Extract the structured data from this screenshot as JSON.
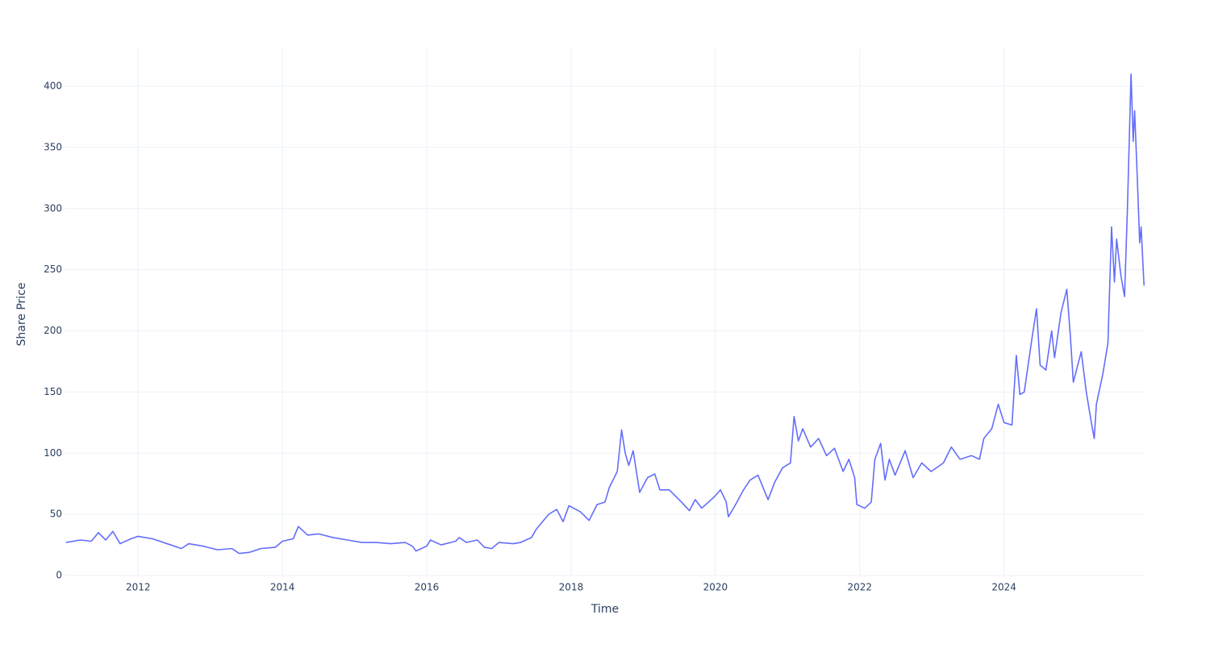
{
  "chart_data": {
    "type": "line",
    "x_label": "Time",
    "y_label": "Share Price",
    "x": [
      2011.0,
      2011.2,
      2011.35,
      2011.45,
      2011.55,
      2011.65,
      2011.75,
      2011.9,
      2012.0,
      2012.2,
      2012.45,
      2012.6,
      2012.7,
      2012.9,
      2013.1,
      2013.3,
      2013.4,
      2013.55,
      2013.7,
      2013.9,
      2014.0,
      2014.15,
      2014.22,
      2014.35,
      2014.5,
      2014.7,
      2014.9,
      2015.1,
      2015.3,
      2015.5,
      2015.7,
      2015.8,
      2015.85,
      2016.0,
      2016.05,
      2016.2,
      2016.4,
      2016.45,
      2016.55,
      2016.7,
      2016.8,
      2016.9,
      2017.0,
      2017.2,
      2017.3,
      2017.45,
      2017.52,
      2017.69,
      2017.8,
      2017.89,
      2017.97,
      2018.13,
      2018.25,
      2018.36,
      2018.47,
      2018.53,
      2018.64,
      2018.7,
      2018.75,
      2018.8,
      2018.86,
      2018.95,
      2019.06,
      2019.16,
      2019.23,
      2019.36,
      2019.53,
      2019.64,
      2019.72,
      2019.81,
      2019.98,
      2020.07,
      2020.15,
      2020.18,
      2020.28,
      2020.39,
      2020.48,
      2020.59,
      2020.73,
      2020.82,
      2020.93,
      2021.04,
      2021.09,
      2021.15,
      2021.21,
      2021.32,
      2021.43,
      2021.54,
      2021.65,
      2021.77,
      2021.85,
      2021.93,
      2021.96,
      2022.07,
      2022.16,
      2022.21,
      2022.29,
      2022.35,
      2022.41,
      2022.49,
      2022.63,
      2022.74,
      2022.86,
      2022.99,
      2023.16,
      2023.27,
      2023.39,
      2023.55,
      2023.66,
      2023.72,
      2023.83,
      2023.92,
      2024.0,
      2024.11,
      2024.17,
      2024.22,
      2024.28,
      2024.39,
      2024.45,
      2024.5,
      2024.58,
      2024.66,
      2024.7,
      2024.79,
      2024.87,
      2024.92,
      2024.96,
      2025.07,
      2025.14,
      2025.21,
      2025.25,
      2025.28,
      2025.37,
      2025.44,
      2025.49,
      2025.53,
      2025.56,
      2025.62,
      2025.67,
      2025.71,
      2025.76,
      2025.79,
      2025.81,
      2025.85,
      2025.88,
      2025.9,
      2025.94
    ],
    "values": [
      27,
      29,
      28,
      35,
      29,
      36,
      26,
      30,
      32,
      30,
      25,
      22,
      26,
      24,
      21,
      22,
      18,
      19,
      22,
      23,
      28,
      30,
      40,
      33,
      34,
      31,
      29,
      27,
      27,
      26,
      27,
      24,
      20,
      24,
      29,
      25,
      28,
      31,
      27,
      29,
      23,
      22,
      27,
      26,
      27,
      31,
      38,
      50,
      54,
      44,
      57,
      52,
      45,
      58,
      60,
      72,
      85,
      119,
      100,
      90,
      102,
      68,
      80,
      83,
      70,
      70,
      60,
      53,
      62,
      55,
      64,
      70,
      60,
      48,
      58,
      70,
      78,
      82,
      62,
      76,
      88,
      92,
      130,
      110,
      120,
      105,
      112,
      98,
      104,
      85,
      95,
      80,
      58,
      55,
      60,
      95,
      108,
      78,
      95,
      82,
      102,
      80,
      92,
      85,
      92,
      105,
      95,
      98,
      95,
      112,
      120,
      140,
      125,
      123,
      180,
      148,
      150,
      195,
      218,
      172,
      168,
      200,
      178,
      215,
      234,
      195,
      158,
      183,
      150,
      125,
      112,
      140,
      165,
      190,
      285,
      240,
      275,
      245,
      228,
      300,
      410,
      355,
      380,
      320,
      272,
      285,
      237
    ],
    "color": "#636efa",
    "xlim": [
      2010.98,
      2025.96
    ],
    "xticks": [
      2012,
      2014,
      2016,
      2018,
      2020,
      2022,
      2024
    ],
    "ylim": [
      0,
      431
    ],
    "yticks": [
      0,
      50,
      100,
      150,
      200,
      250,
      300,
      350,
      400
    ],
    "grid": true
  }
}
